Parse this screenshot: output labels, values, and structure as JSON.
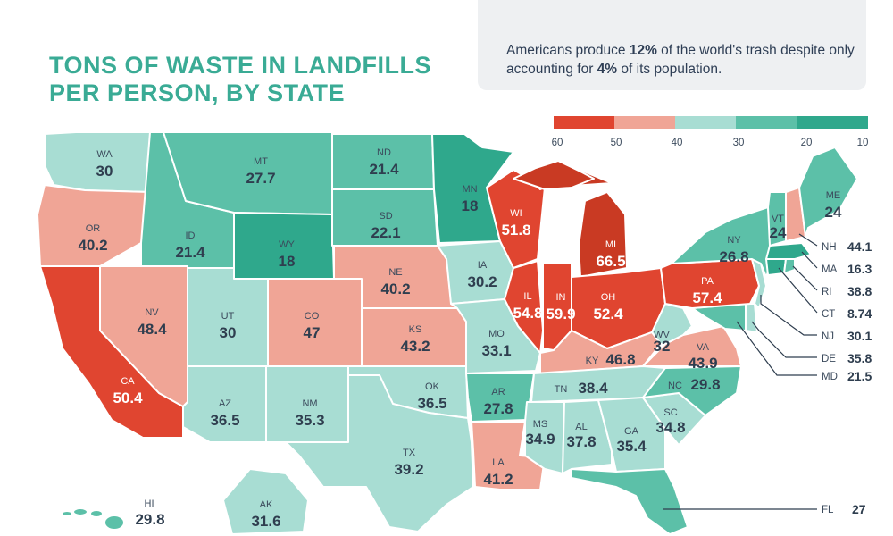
{
  "title": {
    "line1": "TONS OF WASTE IN LANDFILLS",
    "line2": "PER PERSON, BY STATE"
  },
  "note": {
    "pre": "Americans produce ",
    "pct1": "12%",
    "mid": " of the world's trash despite only accounting for ",
    "pct2": "4%",
    "post": " of its population."
  },
  "legend": {
    "labels": [
      "60",
      "50",
      "40",
      "30",
      "20",
      "10"
    ],
    "colors": [
      "#e04530",
      "#f0a596",
      "#a8ddd3",
      "#5cc0a8",
      "#2fa88c"
    ]
  },
  "colors": {
    "darkred": "#c93a23",
    "red": "#e04530",
    "pink": "#f0a596",
    "light": "#a8ddd3",
    "mid": "#5cc0a8",
    "dark": "#2fa88c"
  },
  "states": {
    "WA": {
      "abbr": "WA",
      "value": "30"
    },
    "OR": {
      "abbr": "OR",
      "value": "40.2"
    },
    "CA": {
      "abbr": "CA",
      "value": "50.4"
    },
    "ID": {
      "abbr": "ID",
      "value": "21.4"
    },
    "NV": {
      "abbr": "NV",
      "value": "48.4"
    },
    "MT": {
      "abbr": "MT",
      "value": "27.7"
    },
    "WY": {
      "abbr": "WY",
      "value": "18"
    },
    "UT": {
      "abbr": "UT",
      "value": "30"
    },
    "AZ": {
      "abbr": "AZ",
      "value": "36.5"
    },
    "CO": {
      "abbr": "CO",
      "value": "47"
    },
    "NM": {
      "abbr": "NM",
      "value": "35.3"
    },
    "ND": {
      "abbr": "ND",
      "value": "21.4"
    },
    "SD": {
      "abbr": "SD",
      "value": "22.1"
    },
    "NE": {
      "abbr": "NE",
      "value": "40.2"
    },
    "KS": {
      "abbr": "KS",
      "value": "43.2"
    },
    "OK": {
      "abbr": "OK",
      "value": "36.5"
    },
    "TX": {
      "abbr": "TX",
      "value": "39.2"
    },
    "MN": {
      "abbr": "MN",
      "value": "18"
    },
    "IA": {
      "abbr": "IA",
      "value": "30.2"
    },
    "MO": {
      "abbr": "MO",
      "value": "33.1"
    },
    "AR": {
      "abbr": "AR",
      "value": "27.8"
    },
    "LA": {
      "abbr": "LA",
      "value": "41.2"
    },
    "WI": {
      "abbr": "WI",
      "value": "51.8"
    },
    "IL": {
      "abbr": "IL",
      "value": "54.8"
    },
    "MI": {
      "abbr": "MI",
      "value": "66.5"
    },
    "IN": {
      "abbr": "IN",
      "value": "59.9"
    },
    "OH": {
      "abbr": "OH",
      "value": "52.4"
    },
    "KY": {
      "abbr": "KY",
      "value": "46.8"
    },
    "TN": {
      "abbr": "TN",
      "value": "38.4"
    },
    "MS": {
      "abbr": "MS",
      "value": "34.9"
    },
    "AL": {
      "abbr": "AL",
      "value": "37.8"
    },
    "GA": {
      "abbr": "GA",
      "value": "35.4"
    },
    "FL": {
      "abbr": "FL",
      "value": "27"
    },
    "SC": {
      "abbr": "SC",
      "value": "34.8"
    },
    "NC": {
      "abbr": "NC",
      "value": "29.8"
    },
    "VA": {
      "abbr": "VA",
      "value": "43.9"
    },
    "WV": {
      "abbr": "WV",
      "value": "32"
    },
    "PA": {
      "abbr": "PA",
      "value": "57.4"
    },
    "NY": {
      "abbr": "NY",
      "value": "26.8"
    },
    "VT": {
      "abbr": "VT",
      "value": "24"
    },
    "ME": {
      "abbr": "ME",
      "value": "24"
    },
    "NH": {
      "abbr": "NH",
      "value": "44.1"
    },
    "MA": {
      "abbr": "MA",
      "value": "16.3"
    },
    "RI": {
      "abbr": "RI",
      "value": "38.8"
    },
    "CT": {
      "abbr": "CT",
      "value": "8.74"
    },
    "NJ": {
      "abbr": "NJ",
      "value": "30.1"
    },
    "DE": {
      "abbr": "DE",
      "value": "35.8"
    },
    "MD": {
      "abbr": "MD",
      "value": "21.5"
    },
    "HI": {
      "abbr": "HI",
      "value": "29.8"
    },
    "AK": {
      "abbr": "AK",
      "value": "31.6"
    }
  }
}
